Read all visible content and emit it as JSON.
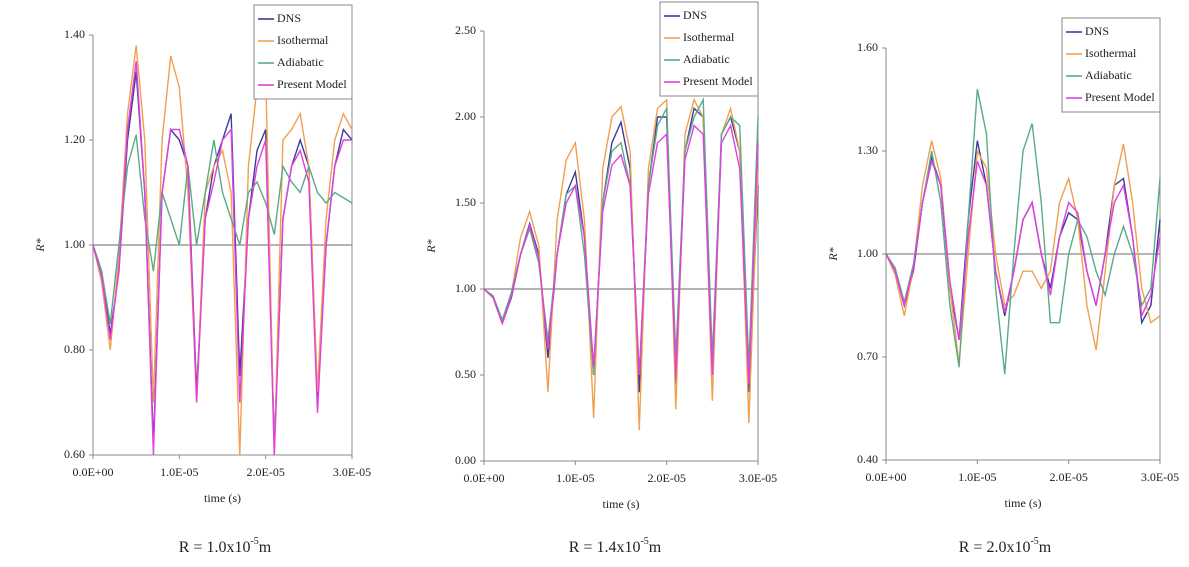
{
  "chart_data": [
    {
      "type": "line",
      "ylabel": "R*",
      "xlabel": "time (s)",
      "caption": {
        "text": "R = 1.0x10",
        "sup": "-5",
        "unit": "m"
      },
      "x": [
        0,
        1e-06,
        2e-06,
        3e-06,
        4e-06,
        5e-06,
        6e-06,
        7e-06,
        8e-06,
        9e-06,
        1e-05,
        1.1e-05,
        1.2e-05,
        1.3e-05,
        1.4e-05,
        1.5e-05,
        1.6e-05,
        1.7e-05,
        1.8e-05,
        1.9e-05,
        2e-05,
        2.1e-05,
        2.2e-05,
        2.3e-05,
        2.4e-05,
        2.5e-05,
        2.6e-05,
        2.7e-05,
        2.8e-05,
        2.9e-05,
        3e-05
      ],
      "xlim": [
        0,
        3e-05
      ],
      "xticks": [
        {
          "value": 0,
          "label": "0.0E+00"
        },
        {
          "value": 1e-05,
          "label": "1.0E-05"
        },
        {
          "value": 2e-05,
          "label": "2.0E-05"
        },
        {
          "value": 3e-05,
          "label": "3.0E-05"
        }
      ],
      "ylim": [
        0.6,
        1.4
      ],
      "yticks": [
        {
          "value": 0.6,
          "label": "0.60"
        },
        {
          "value": 0.8,
          "label": "0.80"
        },
        {
          "value": 1,
          "label": "1.00"
        },
        {
          "value": 1.2,
          "label": "1.20"
        },
        {
          "value": 1.4,
          "label": "1.40"
        }
      ],
      "reference_line": 1,
      "legend": "top-right",
      "series": [
        {
          "name": "DNS",
          "color": "#3b3b9a",
          "values": [
            1.0,
            0.95,
            0.83,
            0.95,
            1.2,
            1.33,
            1.1,
            0.62,
            1.1,
            1.22,
            1.2,
            1.15,
            0.72,
            1.05,
            1.15,
            1.2,
            1.25,
            0.75,
            1.05,
            1.18,
            1.22,
            0.62,
            1.05,
            1.15,
            1.2,
            1.15,
            0.7,
            1.0,
            1.15,
            1.22,
            1.2
          ]
        },
        {
          "name": "Isothermal",
          "color": "#f0a050",
          "values": [
            1.0,
            0.93,
            0.8,
            0.98,
            1.25,
            1.38,
            1.2,
            0.7,
            1.2,
            1.36,
            1.3,
            1.1,
            0.7,
            1.1,
            1.15,
            1.18,
            1.1,
            0.6,
            1.15,
            1.3,
            1.33,
            0.6,
            1.2,
            1.22,
            1.25,
            1.15,
            0.72,
            1.05,
            1.2,
            1.25,
            1.22
          ]
        },
        {
          "name": "Adiabatic",
          "color": "#5aaa88",
          "values": [
            1.0,
            0.95,
            0.85,
            1.0,
            1.15,
            1.21,
            1.05,
            0.95,
            1.1,
            1.05,
            1.0,
            1.15,
            1.0,
            1.1,
            1.2,
            1.1,
            1.05,
            1.0,
            1.1,
            1.12,
            1.08,
            1.02,
            1.15,
            1.12,
            1.1,
            1.15,
            1.1,
            1.08,
            1.1,
            1.09,
            1.08
          ]
        },
        {
          "name": "Present Model",
          "color": "#e040e0",
          "values": [
            1.0,
            0.94,
            0.82,
            0.95,
            1.22,
            1.35,
            1.1,
            0.6,
            1.1,
            1.22,
            1.22,
            1.15,
            0.7,
            1.05,
            1.12,
            1.2,
            1.22,
            0.7,
            1.05,
            1.15,
            1.2,
            0.6,
            1.05,
            1.15,
            1.18,
            1.12,
            0.68,
            1.0,
            1.15,
            1.2,
            1.2
          ]
        }
      ]
    },
    {
      "type": "line",
      "ylabel": "R*",
      "xlabel": "time (s)",
      "caption": {
        "text": "R = 1.4x10",
        "sup": "-5",
        "unit": "m"
      },
      "x": [
        0,
        1e-06,
        2e-06,
        3e-06,
        4e-06,
        5e-06,
        6e-06,
        7e-06,
        8e-06,
        9e-06,
        1e-05,
        1.1e-05,
        1.2e-05,
        1.3e-05,
        1.4e-05,
        1.5e-05,
        1.6e-05,
        1.7e-05,
        1.8e-05,
        1.9e-05,
        2e-05,
        2.1e-05,
        2.2e-05,
        2.3e-05,
        2.4e-05,
        2.5e-05,
        2.6e-05,
        2.7e-05,
        2.8e-05,
        2.9e-05,
        3e-05
      ],
      "xlim": [
        0,
        3e-05
      ],
      "xticks": [
        {
          "value": 0,
          "label": "0.0E+00"
        },
        {
          "value": 1e-05,
          "label": "1.0E-05"
        },
        {
          "value": 2e-05,
          "label": "2.0E-05"
        },
        {
          "value": 3e-05,
          "label": "3.0E-05"
        }
      ],
      "ylim": [
        0,
        2.5
      ],
      "yticks": [
        {
          "value": 0,
          "label": "0.00"
        },
        {
          "value": 0.5,
          "label": "0.50"
        },
        {
          "value": 1,
          "label": "1.00"
        },
        {
          "value": 1.5,
          "label": "1.50"
        },
        {
          "value": 2,
          "label": "2.00"
        },
        {
          "value": 2.5,
          "label": "2.50"
        }
      ],
      "reference_line": 1,
      "legend": "top-right",
      "series": [
        {
          "name": "DNS",
          "color": "#3b3b9a",
          "values": [
            1,
            0.95,
            0.8,
            0.95,
            1.2,
            1.38,
            1.2,
            0.6,
            1.2,
            1.55,
            1.68,
            1.3,
            0.5,
            1.5,
            1.85,
            1.97,
            1.7,
            0.4,
            1.6,
            2.0,
            2.0,
            0.45,
            1.8,
            2.05,
            2.0,
            0.5,
            1.9,
            2.0,
            1.8,
            0.4,
            1.6
          ]
        },
        {
          "name": "Isothermal",
          "color": "#f0a050",
          "values": [
            1,
            0.95,
            0.8,
            0.97,
            1.3,
            1.45,
            1.25,
            0.4,
            1.4,
            1.75,
            1.85,
            1.4,
            0.25,
            1.7,
            2.0,
            2.06,
            1.8,
            0.18,
            1.7,
            2.05,
            2.1,
            0.3,
            1.9,
            2.1,
            2.0,
            0.35,
            1.9,
            2.05,
            1.8,
            0.22,
            1.7
          ]
        },
        {
          "name": "Adiabatic",
          "color": "#5aaa88",
          "values": [
            1,
            0.96,
            0.82,
            0.98,
            1.2,
            1.35,
            1.15,
            0.7,
            1.2,
            1.55,
            1.6,
            1.2,
            0.5,
            1.5,
            1.8,
            1.85,
            1.6,
            0.5,
            1.6,
            1.95,
            2.05,
            0.6,
            1.8,
            2.0,
            2.1,
            0.6,
            1.9,
            2.0,
            1.95,
            0.55,
            2.0
          ]
        },
        {
          "name": "Present Model",
          "color": "#e040e0",
          "values": [
            1,
            0.95,
            0.8,
            0.96,
            1.2,
            1.37,
            1.18,
            0.65,
            1.2,
            1.5,
            1.6,
            1.3,
            0.55,
            1.45,
            1.72,
            1.78,
            1.6,
            0.5,
            1.55,
            1.85,
            1.9,
            0.5,
            1.75,
            1.95,
            1.9,
            0.5,
            1.85,
            1.95,
            1.7,
            0.45,
            1.85
          ]
        }
      ]
    },
    {
      "type": "line",
      "ylabel": "R*",
      "xlabel": "time (s)",
      "caption": {
        "text": "R = 2.0x10",
        "sup": "-5",
        "unit": "m"
      },
      "x": [
        0,
        1e-06,
        2e-06,
        3e-06,
        4e-06,
        5e-06,
        6e-06,
        7e-06,
        8e-06,
        9e-06,
        1e-05,
        1.1e-05,
        1.2e-05,
        1.3e-05,
        1.4e-05,
        1.5e-05,
        1.6e-05,
        1.7e-05,
        1.8e-05,
        1.9e-05,
        2e-05,
        2.1e-05,
        2.2e-05,
        2.3e-05,
        2.4e-05,
        2.5e-05,
        2.6e-05,
        2.7e-05,
        2.8e-05,
        2.9e-05,
        3e-05
      ],
      "xlim": [
        0,
        3e-05
      ],
      "xticks": [
        {
          "value": 0,
          "label": "0.0E+00"
        },
        {
          "value": 1e-05,
          "label": "1.0E-05"
        },
        {
          "value": 2e-05,
          "label": "2.0E-05"
        },
        {
          "value": 3e-05,
          "label": "3.0E-05"
        }
      ],
      "ylim": [
        0.4,
        1.6
      ],
      "yticks": [
        {
          "value": 0.4,
          "label": "0.40"
        },
        {
          "value": 0.7,
          "label": "0.70"
        },
        {
          "value": 1,
          "label": "1.00"
        },
        {
          "value": 1.3,
          "label": "1.30"
        },
        {
          "value": 1.6,
          "label": "1.60"
        }
      ],
      "reference_line": 1,
      "legend": "top-right",
      "series": [
        {
          "name": "DNS",
          "color": "#3b3b9a",
          "values": [
            1,
            0.95,
            0.85,
            0.95,
            1.15,
            1.28,
            1.2,
            0.9,
            0.75,
            1.1,
            1.33,
            1.2,
            0.95,
            0.82,
            0.95,
            1.1,
            1.15,
            1.0,
            0.9,
            1.05,
            1.12,
            1.1,
            0.95,
            0.85,
            1.0,
            1.2,
            1.22,
            1.05,
            0.8,
            0.85,
            1.1
          ]
        },
        {
          "name": "Isothermal",
          "color": "#f0a050",
          "values": [
            1,
            0.94,
            0.82,
            0.96,
            1.2,
            1.33,
            1.22,
            0.9,
            0.68,
            1.0,
            1.3,
            1.25,
            1.0,
            0.85,
            0.88,
            0.95,
            0.95,
            0.9,
            0.95,
            1.15,
            1.22,
            1.1,
            0.85,
            0.72,
            0.95,
            1.2,
            1.32,
            1.15,
            0.9,
            0.8,
            0.82
          ]
        },
        {
          "name": "Adiabatic",
          "color": "#5aaa88",
          "values": [
            1,
            0.96,
            0.86,
            0.97,
            1.15,
            1.3,
            1.15,
            0.85,
            0.67,
            1.1,
            1.48,
            1.35,
            0.9,
            0.65,
            1.0,
            1.3,
            1.38,
            1.15,
            0.8,
            0.8,
            1.0,
            1.1,
            1.05,
            0.95,
            0.88,
            1.0,
            1.08,
            1.0,
            0.85,
            0.9,
            1.22
          ]
        },
        {
          "name": "Present Model",
          "color": "#e040e0",
          "values": [
            1,
            0.95,
            0.85,
            0.96,
            1.15,
            1.27,
            1.2,
            0.92,
            0.75,
            1.05,
            1.27,
            1.2,
            0.95,
            0.83,
            0.95,
            1.1,
            1.15,
            1.0,
            0.88,
            1.05,
            1.15,
            1.12,
            0.95,
            0.85,
            1.0,
            1.15,
            1.2,
            1.05,
            0.82,
            0.88,
            1.05
          ]
        }
      ]
    }
  ]
}
